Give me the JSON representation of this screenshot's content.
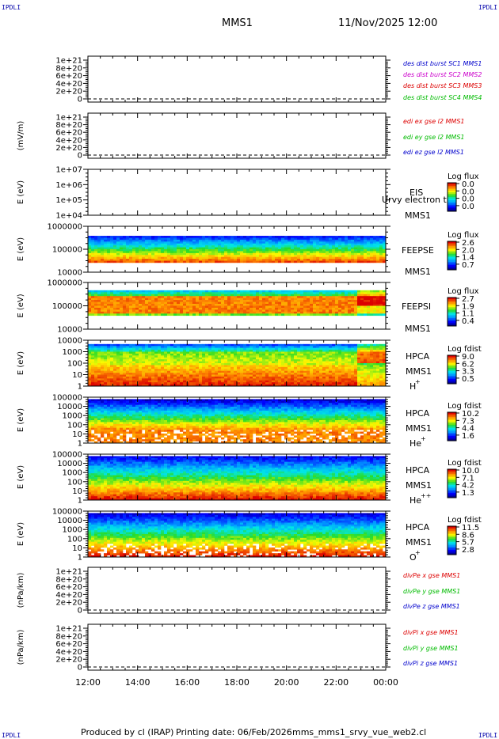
{
  "header": {
    "corner_label": "IPDLI",
    "spacecraft": "MMS1",
    "datetime": "11/Nov/2025 12:00"
  },
  "footer": {
    "produced_by": "Produced by cl (IRAP)",
    "printing_date": "Printing date: 06/Feb/2026",
    "filename": "mms_mms1_srvy_vue_web2.cl"
  },
  "colors": {
    "legend_blue": "#0000cc",
    "legend_magenta": "#cc00cc",
    "legend_red": "#dd0000",
    "legend_green": "#00bb00"
  },
  "chart_data": {
    "type": "heatmap",
    "time_axis": {
      "ticks": [
        "12:00",
        "14:00",
        "16:00",
        "18:00",
        "20:00",
        "22:00",
        "00:00"
      ],
      "range_hours": [
        12,
        24
      ]
    },
    "panels": [
      {
        "kind": "line",
        "ylabel": "",
        "yticks": [
          "1e+21",
          "8e+20",
          "6e+20",
          "4e+20",
          "2e+20",
          "0"
        ],
        "legend": [
          {
            "text": "des dist burst SC1 MMS1",
            "color": "#0000cc"
          },
          {
            "text": "des dist burst SC2 MMS2",
            "color": "#cc00cc"
          },
          {
            "text": "des dist burst SC3 MMS3",
            "color": "#dd0000"
          },
          {
            "text": "des dist burst SC4 MMS4",
            "color": "#00bb00"
          }
        ]
      },
      {
        "kind": "line",
        "ylabel": "(mV/m)",
        "yticks": [
          "1e+21",
          "8e+20",
          "6e+20",
          "4e+20",
          "2e+20",
          "0"
        ],
        "legend": [
          {
            "text": "edi ex gse l2 MMS1",
            "color": "#dd0000"
          },
          {
            "text": "edi ey gse l2 MMS1",
            "color": "#00bb00"
          },
          {
            "text": "edi ez gse l2 MMS1",
            "color": "#0000cc"
          }
        ]
      },
      {
        "kind": "empty-spectrogram",
        "ylabel": "E (eV)",
        "yticks": [
          "1e+07",
          "1e+06",
          "1e+05",
          "1e+04"
        ],
        "labels": [
          "EIS",
          "MMS1"
        ],
        "overlay": "Urvy electron to",
        "cbar_title": "Log flux",
        "cbar_ticks": [
          "0.0",
          "0.0",
          "0.0",
          "0.0"
        ]
      },
      {
        "kind": "spectrogram",
        "profile": "feepse",
        "ylabel": "E (eV)",
        "yticks": [
          "1000000",
          "100000",
          "10000"
        ],
        "labels": [
          "FEEPSE",
          "MMS1"
        ],
        "cbar_title": "Log flux",
        "cbar_ticks": [
          "2.6",
          "2.0",
          "1.4",
          "0.7"
        ]
      },
      {
        "kind": "spectrogram",
        "profile": "feepsi",
        "ylabel": "E (eV)",
        "yticks": [
          "1000000",
          "100000",
          "10000"
        ],
        "labels": [
          "FEEPSI",
          "MMS1"
        ],
        "cbar_title": "Log flux",
        "cbar_ticks": [
          "2.7",
          "1.9",
          "1.1",
          "0.4"
        ]
      },
      {
        "kind": "spectrogram",
        "profile": "hplus",
        "ylabel": "E (eV)",
        "yticks": [
          "10000",
          "1000",
          "100",
          "10",
          "1"
        ],
        "labels": [
          "HPCA",
          "MMS1"
        ],
        "species": "H",
        "charge": "+",
        "cbar_title": "Log fdist",
        "cbar_ticks": [
          "9.0",
          "6.2",
          "3.3",
          "0.5"
        ]
      },
      {
        "kind": "spectrogram",
        "profile": "heplus",
        "ylabel": "E (eV)",
        "yticks": [
          "100000",
          "10000",
          "1000",
          "100",
          "10",
          "1"
        ],
        "labels": [
          "HPCA",
          "MMS1"
        ],
        "species": "He",
        "charge": "+",
        "cbar_title": "Log fdist",
        "cbar_ticks": [
          "10.2",
          "7.3",
          "4.4",
          "1.6"
        ]
      },
      {
        "kind": "spectrogram",
        "profile": "hepp",
        "ylabel": "E (eV)",
        "yticks": [
          "100000",
          "10000",
          "1000",
          "100",
          "10",
          "1"
        ],
        "labels": [
          "HPCA",
          "MMS1"
        ],
        "species": "He",
        "charge": "++",
        "cbar_title": "Log fdist",
        "cbar_ticks": [
          "10.0",
          "7.1",
          "4.2",
          "1.3"
        ]
      },
      {
        "kind": "spectrogram",
        "profile": "oplus",
        "ylabel": "E (eV)",
        "yticks": [
          "100000",
          "10000",
          "1000",
          "100",
          "10",
          "1"
        ],
        "labels": [
          "HPCA",
          "MMS1"
        ],
        "species": "O",
        "charge": "+",
        "cbar_title": "Log fdist",
        "cbar_ticks": [
          "11.5",
          "8.6",
          "5.7",
          "2.8"
        ]
      },
      {
        "kind": "line",
        "ylabel": "(nPa/km)",
        "yticks": [
          "1e+21",
          "8e+20",
          "6e+20",
          "4e+20",
          "2e+20",
          "0"
        ],
        "legend": [
          {
            "text": "divPe x gse MMS1",
            "color": "#dd0000"
          },
          {
            "text": "divPe y gse MMS1",
            "color": "#00bb00"
          },
          {
            "text": "divPe z gse MMS1",
            "color": "#0000cc"
          }
        ]
      },
      {
        "kind": "line",
        "ylabel": "(nPa/km)",
        "yticks": [
          "1e+21",
          "8e+20",
          "6e+20",
          "4e+20",
          "2e+20",
          "0"
        ],
        "legend": [
          {
            "text": "divPi x gse MMS1",
            "color": "#dd0000"
          },
          {
            "text": "divPi y gse MMS1",
            "color": "#00bb00"
          },
          {
            "text": "divPi z gse MMS1",
            "color": "#0000cc"
          }
        ]
      }
    ]
  }
}
